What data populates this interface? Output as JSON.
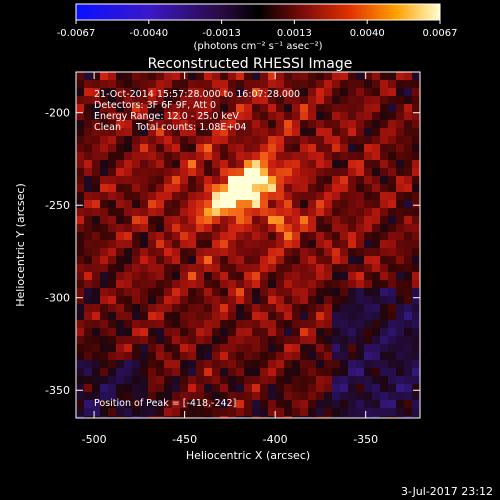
{
  "chart_data": {
    "type": "heatmap",
    "title": "Reconstructed RHESSI Image",
    "xlabel": "Heliocentric X (arcsec)",
    "ylabel": "Heliocentric Y (arcsec)",
    "xlim": [
      -510,
      -320
    ],
    "ylim": [
      -365,
      -178
    ],
    "x_ticks": [
      -500,
      -450,
      -400,
      -350
    ],
    "y_ticks": [
      -200,
      -250,
      -300,
      -350
    ],
    "colorbar": {
      "range": [
        -0.0067,
        0.0067
      ],
      "ticks": [
        "-0.0067",
        "-0.0040",
        "-0.0013",
        "0.0013",
        "0.0040",
        "0.0067"
      ],
      "unit_label": "(photons cm⁻² s⁻¹ asec⁻²)"
    },
    "annotations": [
      "21-Oct-2014 15:57:28.000 to 16:07:28.000",
      "Detectors: 3F 6F 9F, Att 0",
      "Energy Range: 12.0 - 25.0 keV",
      "Clean     Total counts: 1.08E+04"
    ],
    "peak_label": "Position of Peak = [-418,-242]",
    "peak": {
      "x": -418,
      "y": -242
    },
    "footer_date": "3-Jul-2017 23:12"
  }
}
